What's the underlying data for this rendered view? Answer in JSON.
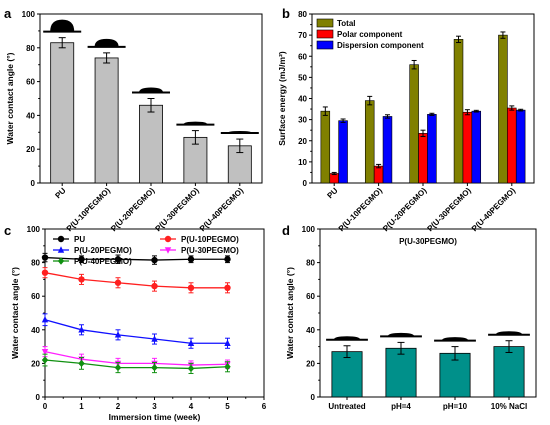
{
  "chart_data": [
    {
      "panel": "a",
      "type": "bar",
      "ylabel": "Water contact angle (°)",
      "ylim": [
        0,
        100
      ],
      "yticks": [
        0,
        20,
        40,
        60,
        80,
        100
      ],
      "categories": [
        "PU",
        "P(U-10PEGMO)",
        "P(U-20PEGMO)",
        "P(U-30PEGMO)",
        "P(U-40PEGMO)"
      ],
      "values": [
        83,
        74,
        46,
        27,
        22
      ],
      "errors": [
        3,
        3,
        4,
        4,
        4
      ],
      "bar_color": "#c0c0c0"
    },
    {
      "panel": "b",
      "type": "bar",
      "ylabel": "Surface energy (mJ/m²)",
      "ylim": [
        0,
        80
      ],
      "yticks": [
        0,
        10,
        20,
        30,
        40,
        50,
        60,
        70,
        80
      ],
      "categories": [
        "PU",
        "P(U-10PEGMO)",
        "P(U-20PEGMO)",
        "P(U-30PEGMO)",
        "P(U-40PEGMO)"
      ],
      "legend_position": "top-left",
      "series": [
        {
          "name": "Total",
          "color": "#808000",
          "values": [
            34,
            39,
            56,
            68,
            70
          ],
          "errors": [
            2,
            2,
            2,
            1.5,
            1.5
          ]
        },
        {
          "name": "Polar component",
          "color": "#ff0000",
          "values": [
            4.5,
            8,
            23.5,
            33.5,
            35.5
          ],
          "errors": [
            0.5,
            0.8,
            1.5,
            1.2,
            1
          ]
        },
        {
          "name": "Dispersion component",
          "color": "#0000ff",
          "values": [
            29.5,
            31.5,
            32.5,
            34,
            34.5
          ],
          "errors": [
            0.8,
            0.8,
            0.5,
            0.4,
            0.4
          ]
        }
      ]
    },
    {
      "panel": "c",
      "type": "line",
      "xlabel": "Immersion time (week)",
      "ylabel": "Water contact angle (°)",
      "xlim": [
        0,
        6
      ],
      "ylim": [
        0,
        100
      ],
      "xticks": [
        0,
        1,
        2,
        3,
        4,
        5,
        6
      ],
      "yticks": [
        0,
        20,
        40,
        60,
        80,
        100
      ],
      "x": [
        0,
        1,
        2,
        3,
        4,
        5
      ],
      "series": [
        {
          "name": "PU",
          "color": "#000000",
          "marker": "circle",
          "values": [
            83,
            82,
            82,
            81.5,
            82,
            82
          ],
          "errors": [
            2.5,
            2,
            2.5,
            2.5,
            2,
            2
          ]
        },
        {
          "name": "P(U-10PEGMO)",
          "color": "#ff2020",
          "marker": "circle",
          "values": [
            74,
            70,
            68,
            66,
            65,
            65
          ],
          "errors": [
            3,
            3,
            3,
            3,
            3,
            3
          ]
        },
        {
          "name": "P(U-20PEGMO)",
          "color": "#1010ff",
          "marker": "triangle-up",
          "values": [
            46,
            40,
            37,
            34.5,
            32,
            32
          ],
          "errors": [
            3.5,
            3,
            3,
            3,
            3,
            3
          ]
        },
        {
          "name": "P(U-30PEGMO)",
          "color": "#ff20ff",
          "marker": "triangle-down",
          "values": [
            27,
            22.5,
            20,
            20,
            19,
            19.5
          ],
          "errors": [
            3,
            3,
            3,
            3,
            2.5,
            2.5
          ]
        },
        {
          "name": "P(U-40PEGMO)",
          "color": "#109010",
          "marker": "diamond",
          "values": [
            22,
            20,
            17.5,
            17.5,
            17,
            18
          ],
          "errors": [
            3.5,
            3.5,
            3,
            3,
            3,
            3
          ]
        }
      ]
    },
    {
      "panel": "d",
      "type": "bar",
      "title": "P(U-30PEGMO)",
      "ylabel": "Water contact angle (°)",
      "ylim": [
        0,
        100
      ],
      "yticks": [
        0,
        20,
        40,
        60,
        80,
        100
      ],
      "categories": [
        "Untreated",
        "pH=4",
        "pH=10",
        "10% NaCl"
      ],
      "values": [
        27,
        29,
        26,
        30
      ],
      "errors": [
        3.5,
        3.5,
        4,
        3.5
      ],
      "bar_color": "#00908a"
    }
  ]
}
